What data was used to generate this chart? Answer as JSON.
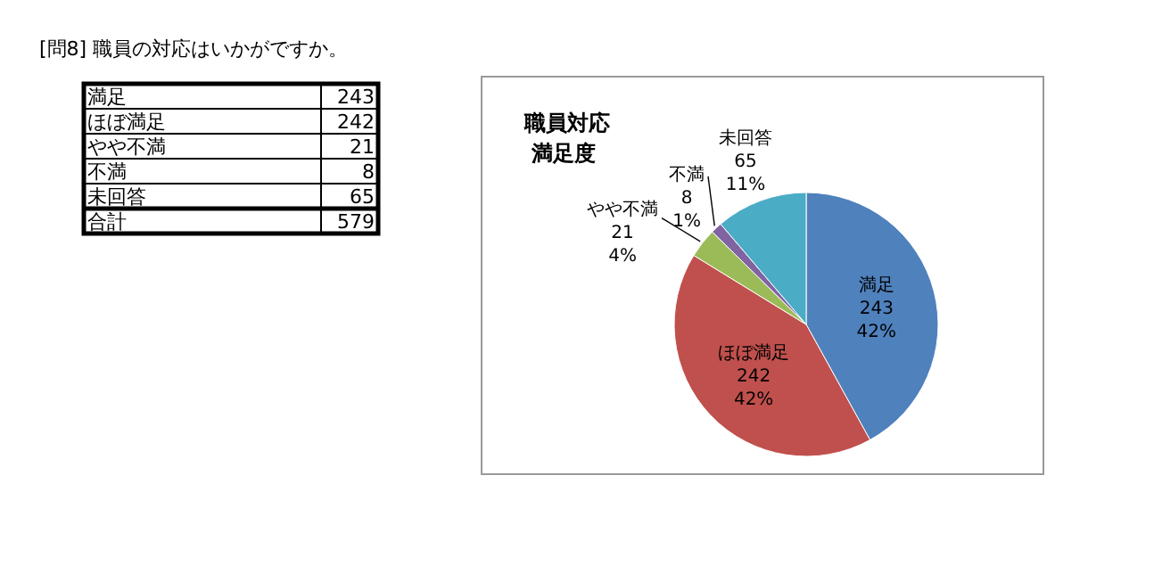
{
  "chart_data": [
    {
      "type": "other",
      "title": "[問8] 職員の対応はいかがですか。",
      "annotations": [
        "満足",
        "243",
        "ほぼ満足",
        "242",
        "やや不満",
        "21",
        "不満",
        "8",
        "未回答",
        "65",
        "合計",
        "579"
      ]
    },
    {
      "type": "pie",
      "title": "職員対応満足度",
      "categories": [
        "満足",
        "ほぼ満足",
        "やや不満",
        "不満",
        "未回答"
      ],
      "values": [
        243,
        242,
        21,
        8,
        65
      ],
      "colors": [
        "#4f81bd",
        "#c0504d",
        "#9bbb59",
        "#8064a2",
        "#4bacc6"
      ],
      "value_labels": [
        "243\n42%",
        "242\n42%",
        "21\n4%",
        "8\n1%",
        "65\n11%"
      ]
    }
  ]
}
